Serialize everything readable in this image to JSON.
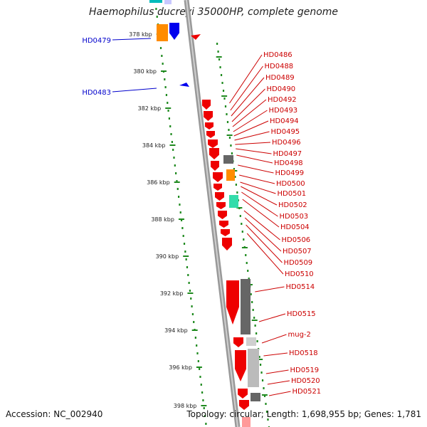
{
  "title": "Haemophilus ducreyi 35000HP, complete genome",
  "footer": {
    "accession": "Accession: NC_002940",
    "summary": "Topology: circular; Length: 1,698,955 bp; Genes: 1,781"
  },
  "ticks": [
    "378 kbp",
    "380 kbp",
    "382 kbp",
    "384 kbp",
    "386 kbp",
    "388 kbp",
    "390 kbp",
    "392 kbp",
    "394 kbp",
    "396 kbp",
    "398 kbp"
  ],
  "left_labels": [
    "HD0479",
    "HD0483"
  ],
  "right_labels": [
    "HD0486",
    "HD0488",
    "HD0489",
    "HD0490",
    "HD0492",
    "HD0493",
    "HD0494",
    "HD0495",
    "HD0496",
    "HD0497",
    "HD0498",
    "HD0499",
    "HD0500",
    "HD0501",
    "HD0502",
    "HD0503",
    "HD0504",
    "HD0506",
    "HD0507",
    "HD0509",
    "HD0510",
    "HD0514",
    "HD0515",
    "mug-2",
    "HD0518",
    "HD0519",
    "HD0520",
    "HD0521"
  ],
  "colors": {
    "backbone": "#888888",
    "tick_green": "#1f8a1f",
    "left_label": "#0000cc",
    "right_label": "#cc0000",
    "gene_red": "#ee0000",
    "gene_gray": "#666666",
    "gene_orange": "#ff8c00",
    "gene_blue": "#0000ee",
    "gene_teal": "#33ddaa",
    "gene_cyan": "#00bbbb"
  }
}
